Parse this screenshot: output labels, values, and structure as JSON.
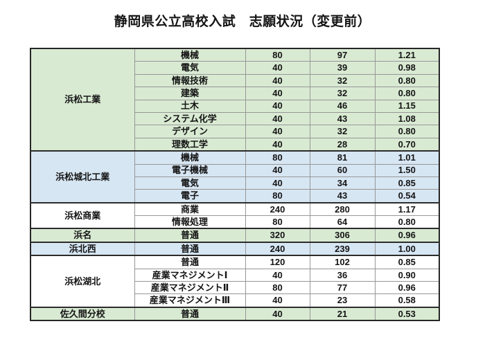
{
  "title": "静岡県公立高校入試　志願状況（変更前）",
  "colors": {
    "green": "#d9ead3",
    "blue": "#d7e6f3",
    "white": "#ffffff",
    "outer_border": "#262626",
    "group_border": "#2b2b2b",
    "inner_border": "#969696",
    "text": "#141414"
  },
  "chart_data": {
    "type": "table",
    "note_column_meaning": "school | department | capacity | applicants | ratio",
    "groups": [
      {
        "school": "浜松工業",
        "color": "green",
        "rows": [
          [
            "機械",
            "80",
            "97",
            "1.21"
          ],
          [
            "電気",
            "40",
            "39",
            "0.98"
          ],
          [
            "情報技術",
            "40",
            "32",
            "0.80"
          ],
          [
            "建築",
            "40",
            "32",
            "0.80"
          ],
          [
            "土木",
            "40",
            "46",
            "1.15"
          ],
          [
            "システム化学",
            "40",
            "43",
            "1.08"
          ],
          [
            "デザイン",
            "40",
            "32",
            "0.80"
          ],
          [
            "理数工学",
            "40",
            "28",
            "0.70"
          ]
        ]
      },
      {
        "school": "浜松城北工業",
        "color": "blue",
        "rows": [
          [
            "機械",
            "80",
            "81",
            "1.01"
          ],
          [
            "電子機械",
            "40",
            "60",
            "1.50"
          ],
          [
            "電気",
            "40",
            "34",
            "0.85"
          ],
          [
            "電子",
            "80",
            "43",
            "0.54"
          ]
        ]
      },
      {
        "school": "浜松商業",
        "color": "white",
        "rows": [
          [
            "商業",
            "240",
            "280",
            "1.17"
          ],
          [
            "情報処理",
            "80",
            "64",
            "0.80"
          ]
        ]
      },
      {
        "school": "浜名",
        "color": "green",
        "rows": [
          [
            "普通",
            "320",
            "306",
            "0.96"
          ]
        ]
      },
      {
        "school": "浜北西",
        "color": "blue",
        "rows": [
          [
            "普通",
            "240",
            "239",
            "1.00"
          ]
        ]
      },
      {
        "school": "浜松湖北",
        "color": "white",
        "rows": [
          [
            "普通",
            "120",
            "102",
            "0.85"
          ],
          [
            "産業マネジメントⅠ",
            "40",
            "36",
            "0.90"
          ],
          [
            "産業マネジメントⅡ",
            "80",
            "77",
            "0.96"
          ],
          [
            "産業マネジメントⅢ",
            "40",
            "23",
            "0.58"
          ]
        ]
      },
      {
        "school": "佐久間分校",
        "color": "green",
        "rows": [
          [
            "普通",
            "40",
            "21",
            "0.53"
          ]
        ]
      }
    ]
  }
}
